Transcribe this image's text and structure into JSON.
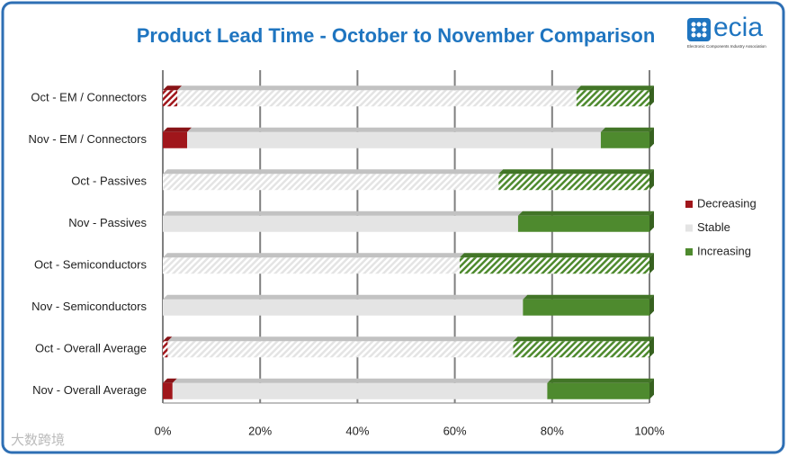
{
  "chart_data": {
    "type": "stacked-bar-horizontal",
    "title": "Product Lead Time - October to November Comparison",
    "categories": [
      "Oct - EM / Connectors",
      "Nov - EM / Connectors",
      "Oct - Passives",
      "Nov - Passives",
      "Oct - Semiconductors",
      "Nov - Semiconductors",
      "Oct - Overall Average",
      "Nov - Overall Average"
    ],
    "patterns": [
      "hatched",
      "solid",
      "hatched",
      "solid",
      "hatched",
      "solid",
      "hatched",
      "solid"
    ],
    "series": [
      {
        "name": "Decreasing",
        "color": "#a0161b",
        "values": [
          3,
          5,
          0,
          0,
          0,
          0,
          1,
          2
        ]
      },
      {
        "name": "Stable",
        "color": "#e4e4e4",
        "values": [
          82,
          85,
          69,
          73,
          61,
          74,
          71,
          77
        ]
      },
      {
        "name": "Increasing",
        "color": "#4e8a2e",
        "values": [
          15,
          10,
          31,
          27,
          39,
          26,
          28,
          21
        ]
      }
    ],
    "xlim": [
      0,
      100
    ],
    "xticks": [
      {
        "value": 0,
        "label": "0%"
      },
      {
        "value": 20,
        "label": "20%"
      },
      {
        "value": 40,
        "label": "40%"
      },
      {
        "value": 60,
        "label": "60%"
      },
      {
        "value": 80,
        "label": "80%"
      },
      {
        "value": 100,
        "label": "100%"
      }
    ],
    "grid": true,
    "legend": "right"
  },
  "logo": {
    "name": "ecia",
    "subtitle": "Electronic Components Industry Association"
  },
  "watermark": "大数跨境"
}
